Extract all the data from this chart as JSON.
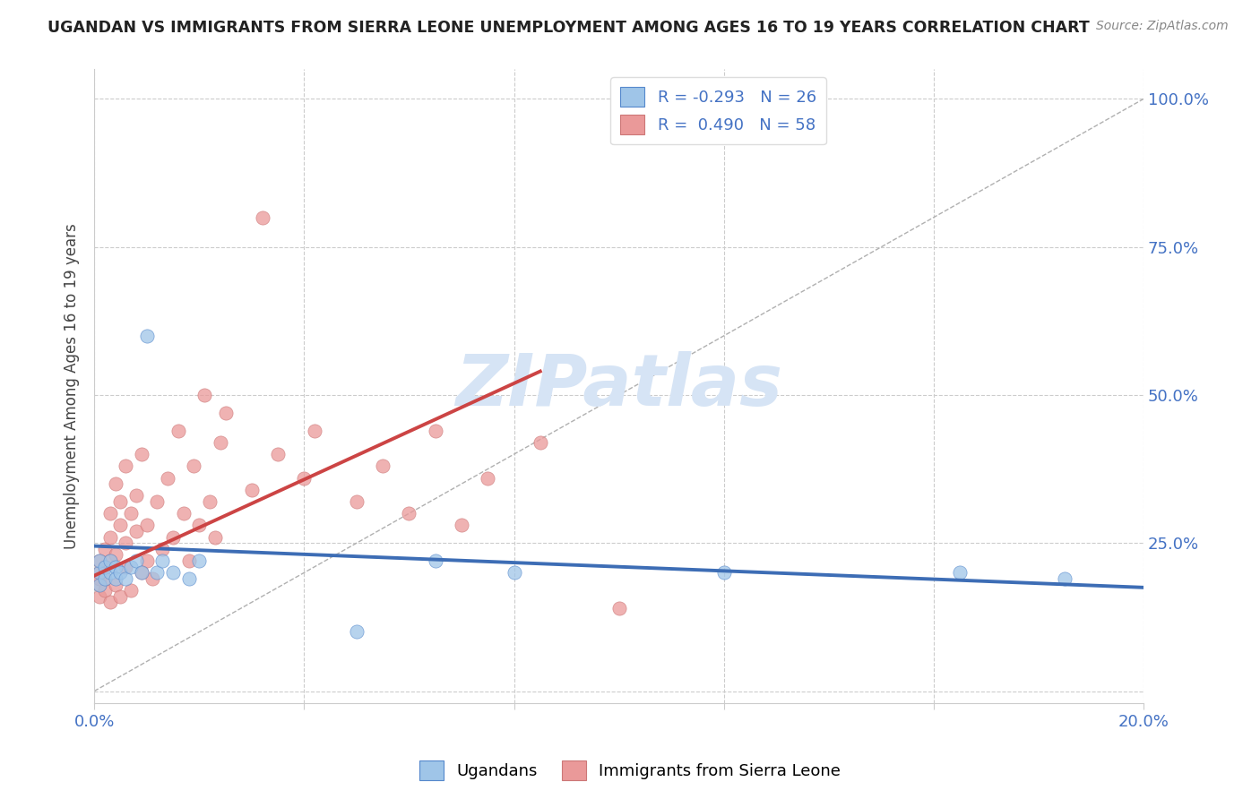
{
  "title": "UGANDAN VS IMMIGRANTS FROM SIERRA LEONE UNEMPLOYMENT AMONG AGES 16 TO 19 YEARS CORRELATION CHART",
  "source": "Source: ZipAtlas.com",
  "ylabel": "Unemployment Among Ages 16 to 19 years",
  "xlim": [
    0.0,
    0.2
  ],
  "ylim": [
    -0.02,
    1.05
  ],
  "legend_r_blue": "-0.293",
  "legend_n_blue": "26",
  "legend_r_pink": "0.490",
  "legend_n_pink": "58",
  "blue_color": "#9fc5e8",
  "pink_color": "#ea9999",
  "blue_line_color": "#3d6db5",
  "pink_line_color": "#cc4444",
  "background_color": "#ffffff",
  "grid_color": "#cccccc",
  "watermark_color": "#d6e4f5",
  "blue_x": [
    0.001,
    0.001,
    0.001,
    0.002,
    0.002,
    0.003,
    0.003,
    0.004,
    0.004,
    0.005,
    0.006,
    0.007,
    0.008,
    0.009,
    0.01,
    0.012,
    0.013,
    0.015,
    0.018,
    0.02,
    0.05,
    0.065,
    0.08,
    0.12,
    0.165,
    0.185
  ],
  "blue_y": [
    0.2,
    0.22,
    0.18,
    0.19,
    0.21,
    0.2,
    0.22,
    0.21,
    0.19,
    0.2,
    0.19,
    0.21,
    0.22,
    0.2,
    0.6,
    0.2,
    0.22,
    0.2,
    0.19,
    0.22,
    0.1,
    0.22,
    0.2,
    0.2,
    0.2,
    0.19
  ],
  "pink_x": [
    0.001,
    0.001,
    0.001,
    0.001,
    0.001,
    0.002,
    0.002,
    0.002,
    0.002,
    0.003,
    0.003,
    0.003,
    0.003,
    0.004,
    0.004,
    0.004,
    0.005,
    0.005,
    0.005,
    0.006,
    0.006,
    0.006,
    0.007,
    0.007,
    0.008,
    0.008,
    0.009,
    0.009,
    0.01,
    0.01,
    0.011,
    0.012,
    0.013,
    0.014,
    0.015,
    0.016,
    0.017,
    0.018,
    0.019,
    0.02,
    0.021,
    0.022,
    0.023,
    0.024,
    0.025,
    0.03,
    0.032,
    0.035,
    0.04,
    0.042,
    0.05,
    0.055,
    0.06,
    0.065,
    0.07,
    0.075,
    0.085,
    0.1
  ],
  "pink_y": [
    0.2,
    0.22,
    0.18,
    0.19,
    0.16,
    0.21,
    0.24,
    0.17,
    0.19,
    0.22,
    0.26,
    0.3,
    0.15,
    0.23,
    0.35,
    0.18,
    0.28,
    0.32,
    0.16,
    0.25,
    0.38,
    0.21,
    0.3,
    0.17,
    0.27,
    0.33,
    0.2,
    0.4,
    0.22,
    0.28,
    0.19,
    0.32,
    0.24,
    0.36,
    0.26,
    0.44,
    0.3,
    0.22,
    0.38,
    0.28,
    0.5,
    0.32,
    0.26,
    0.42,
    0.47,
    0.34,
    0.8,
    0.4,
    0.36,
    0.44,
    0.32,
    0.38,
    0.3,
    0.44,
    0.28,
    0.36,
    0.42,
    0.14
  ],
  "blue_trend_x": [
    0.0,
    0.2
  ],
  "blue_trend_y": [
    0.245,
    0.175
  ],
  "pink_trend_x": [
    0.0,
    0.085
  ],
  "pink_trend_y": [
    0.195,
    0.54
  ]
}
